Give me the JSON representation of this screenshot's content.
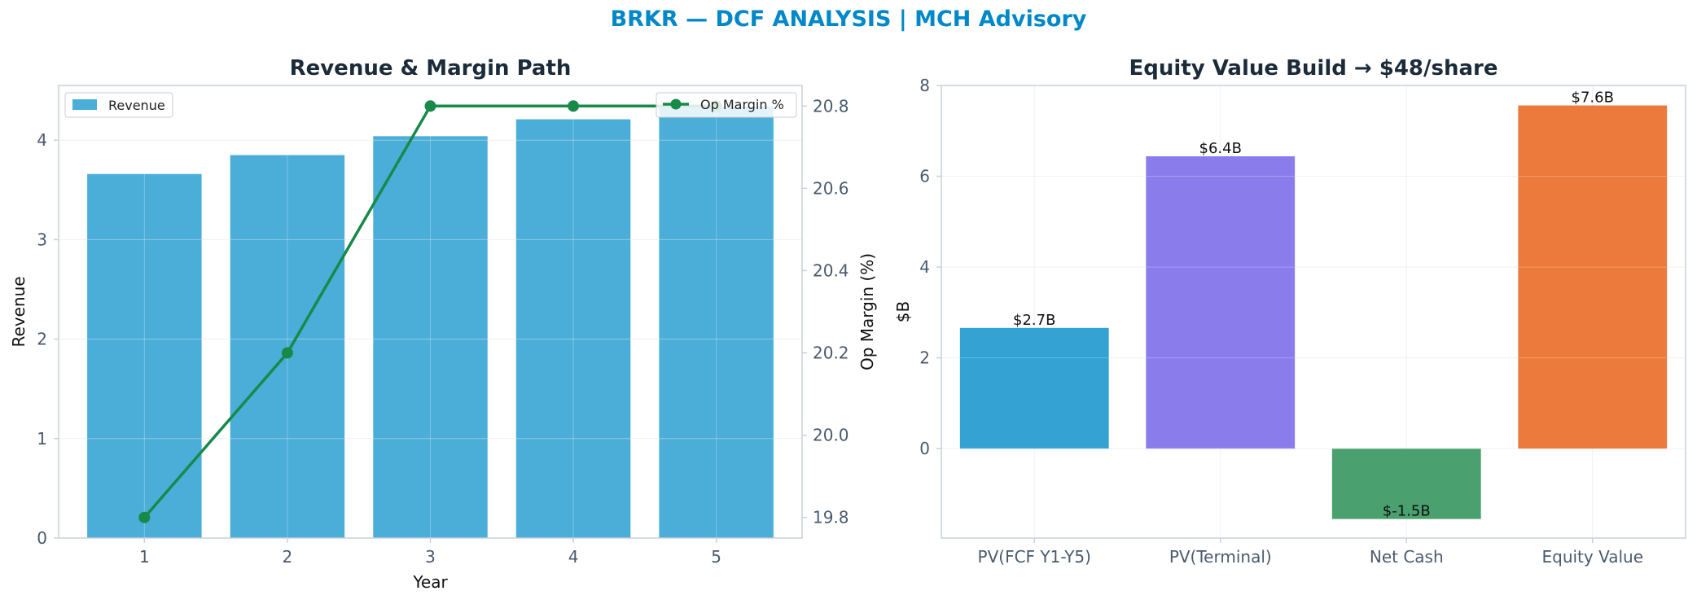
{
  "suptitle": "BRKR — DCF ANALYSIS | MCH Advisory",
  "chart_data": [
    {
      "type": "bar",
      "title": "Revenue & Margin Path",
      "xlabel": "Year",
      "ylabel": "Revenue",
      "y2label": "Op Margin (%)",
      "categories": [
        "1",
        "2",
        "3",
        "4",
        "5"
      ],
      "ylim": [
        0,
        4.55
      ],
      "yticks": [
        0,
        1,
        2,
        3,
        4
      ],
      "y2lim": [
        19.75,
        20.85
      ],
      "y2ticks": [
        19.8,
        20.0,
        20.2,
        20.4,
        20.6,
        20.8
      ],
      "series": [
        {
          "name": "Revenue",
          "kind": "bar",
          "color": "#4baed9",
          "values": [
            3.66,
            3.85,
            4.04,
            4.21,
            4.34
          ]
        },
        {
          "name": "Op Margin %",
          "kind": "line",
          "axis": "right",
          "color": "#178a4a",
          "values": [
            19.8,
            20.2,
            20.8,
            20.8,
            20.8
          ]
        }
      ],
      "legend": [
        "upper-left: Revenue",
        "upper-right: Op Margin %"
      ],
      "grid": true
    },
    {
      "type": "bar",
      "title": "Equity Value Build → $48/share",
      "xlabel": "",
      "ylabel": "$B",
      "categories": [
        "PV(FCF Y1-Y5)",
        "PV(Terminal)",
        "Net Cash",
        "Equity Value"
      ],
      "values": [
        2.66,
        6.44,
        -1.55,
        7.56
      ],
      "data_labels": [
        "$2.7B",
        "$6.4B",
        "$-1.5B",
        "$7.6B"
      ],
      "colors": [
        "#35a2d4",
        "#8a7deb",
        "#4aa06e",
        "#ec7a3d"
      ],
      "ylim": [
        -1.97,
        8.0
      ],
      "yticks": [
        0,
        2,
        4,
        6,
        8
      ],
      "grid": true
    }
  ]
}
